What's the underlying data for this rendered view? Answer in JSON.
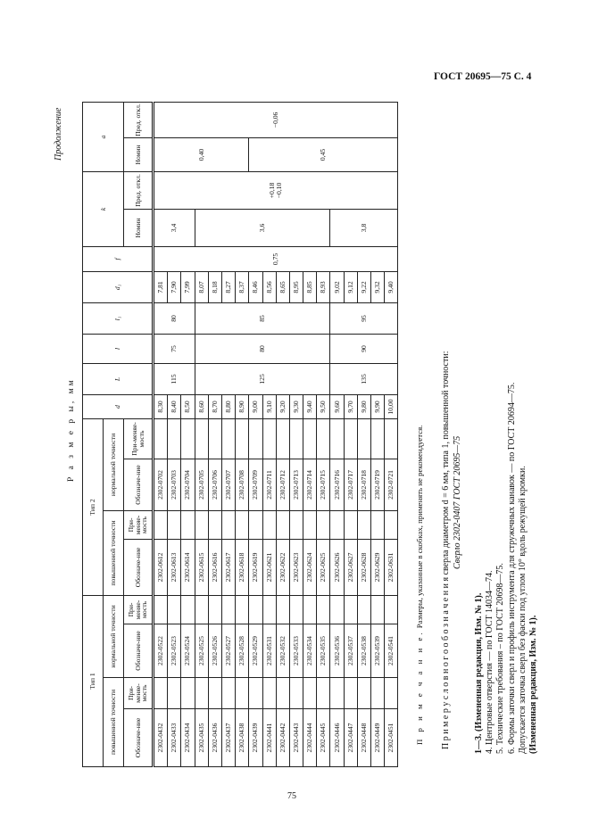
{
  "page_header": "ГОСТ 20695—75 С. 4",
  "page_number": "75",
  "continuation_label": "Продолжение",
  "units_heading": "Р а з м е р ы,  мм",
  "table": {
    "type_headers": [
      "Тип 1",
      "Тип 2"
    ],
    "accuracy_headers": [
      "повышенной точности",
      "нормальной точности",
      "повышенной точности",
      "нормальной точности"
    ],
    "sub_headers": {
      "designation": "Обозначе-ние",
      "applicability": "При-меняе-мость"
    },
    "dim_headers": [
      "d",
      "L",
      "l",
      "l₁",
      "d₁",
      "f"
    ],
    "k_header": "k",
    "a_header": "a",
    "nominal_label": "Номин",
    "tolerance_label": "Пред. откл.",
    "rows": [
      {
        "t1h": "2302-0432",
        "t1n": "2302-0522",
        "t2h": "2302-0612",
        "t2n": "2302-0702",
        "d": "8,30",
        "d1": "7,81"
      },
      {
        "t1h": "2302-0433",
        "t1n": "2302-0523",
        "t2h": "2302-0613",
        "t2n": "2302-0703",
        "d": "8,40",
        "d1": "7,90"
      },
      {
        "t1h": "2302-0434",
        "t1n": "2302-0524",
        "t2h": "2302-0614",
        "t2n": "2302-0704",
        "d": "8,50",
        "d1": "7,99"
      },
      {
        "t1h": "2302-0435",
        "t1n": "2302-0525",
        "t2h": "2302-0615",
        "t2n": "2302-0705",
        "d": "8,60",
        "d1": "8,07"
      },
      {
        "t1h": "2302-0436",
        "t1n": "2302-0526",
        "t2h": "2302-0616",
        "t2n": "2302-0706",
        "d": "8,70",
        "d1": "8,18"
      },
      {
        "t1h": "2302-0437",
        "t1n": "2302-0527",
        "t2h": "2302-0617",
        "t2n": "2302-0707",
        "d": "8,80",
        "d1": "8,27"
      },
      {
        "t1h": "2302-0438",
        "t1n": "2302-0528",
        "t2h": "2302-0618",
        "t2n": "2302-0708",
        "d": "8,90",
        "d1": "8,37"
      },
      {
        "t1h": "2302-0439",
        "t1n": "2302-0529",
        "t2h": "2302-0619",
        "t2n": "2302-0709",
        "d": "9,00",
        "d1": "8,46"
      },
      {
        "t1h": "2302-0441",
        "t1n": "2302-0531",
        "t2h": "2302-0621",
        "t2n": "2302-0711",
        "d": "9,10",
        "d1": "8,56"
      },
      {
        "t1h": "2302-0442",
        "t1n": "2302-0532",
        "t2h": "2302-0622",
        "t2n": "2302-0712",
        "d": "9,20",
        "d1": "8,65"
      },
      {
        "t1h": "2302-0443",
        "t1n": "2302-0533",
        "t2h": "2302-0623",
        "t2n": "2302-0713",
        "d": "9,30",
        "d1": "8,95"
      },
      {
        "t1h": "2302-0444",
        "t1n": "2302-0534",
        "t2h": "2302-0624",
        "t2n": "2302-0714",
        "d": "9,40",
        "d1": "8,85"
      },
      {
        "t1h": "2302-0445",
        "t1n": "2302-0535",
        "t2h": "2302-0625",
        "t2n": "2302-0715",
        "d": "9,50",
        "d1": "8,93"
      },
      {
        "t1h": "2302-0446",
        "t1n": "2302-0536",
        "t2h": "2302-0626",
        "t2n": "2302-0716",
        "d": "9,60",
        "d1": "9,02"
      },
      {
        "t1h": "2302-0447",
        "t1n": "2302-0537",
        "t2h": "2302-0627",
        "t2n": "2302-0717",
        "d": "9,70",
        "d1": "9,12"
      },
      {
        "t1h": "2302-0448",
        "t1n": "2302-0538",
        "t2h": "2302-0628",
        "t2n": "2302-0718",
        "d": "9,80",
        "d1": "9,22"
      },
      {
        "t1h": "2302-0449",
        "t1n": "2302-0539",
        "t2h": "2302-0629",
        "t2n": "2302-0719",
        "d": "9,90",
        "d1": "9,32"
      },
      {
        "t1h": "2302-0451",
        "t1n": "2302-0541",
        "t2h": "2302-0631",
        "t2n": "2302-0721",
        "d": "10,00",
        "d1": "9,40"
      }
    ],
    "merged": {
      "L": [
        {
          "value": "115",
          "rows": 3
        },
        {
          "value": "125",
          "rows": 10
        },
        {
          "value": "135",
          "rows": 5
        }
      ],
      "l": [
        {
          "value": "75",
          "rows": 3
        },
        {
          "value": "80",
          "rows": 10
        },
        {
          "value": "90",
          "rows": 5
        }
      ],
      "l1": [
        {
          "value": "80",
          "rows": 3
        },
        {
          "value": "85",
          "rows": 10
        },
        {
          "value": "95",
          "rows": 5
        }
      ],
      "f": [
        {
          "value": "0,75",
          "rows": 18
        }
      ],
      "k_nom": [
        {
          "value": "3,4",
          "rows": 3
        },
        {
          "value": "3,6",
          "rows": 10
        },
        {
          "value": "3,8",
          "rows": 5
        }
      ],
      "k_tol": [
        {
          "value": "+0,18\n−0,10",
          "rows": 18
        }
      ],
      "a_nom": [
        {
          "value": "0,40",
          "rows": 7
        },
        {
          "value": "0,45",
          "rows": 11
        }
      ],
      "a_tol": [
        {
          "value": "−0,06",
          "rows": 18
        }
      ]
    }
  },
  "notes": {
    "remark_label": "П р и м е ч а н и е.",
    "remark_text": "Размеры, указанные в скобках, применять не рекомендуется.",
    "example_label": "П р и м е р   у с л о в н о г о   о б о з н а ч е н и я",
    "example_text": "сверла диаметром d = 6 мм, типа 1, повышенной точности:",
    "example_designation": "Сверло 2302-0407 ГОСТ 20695—75",
    "item_1_3": "1—3. (Измененная редакция, Изм. № 1).",
    "item_4": "4. Центровые отверстия — по ГОСТ 14034—74.",
    "item_5": "5. Технические требования – по ГОСТ 20698—75.",
    "item_6": "6. Формы заточки сверл и профиль инструмента для стружечных канавок — по ГОСТ 20694—75.",
    "item_6_cont": "Допускается заточка сверл без фаски под углом 10° вдоль режущей кромки.",
    "item_6_change": "(Измененная редакция, Изм. № 1)."
  }
}
